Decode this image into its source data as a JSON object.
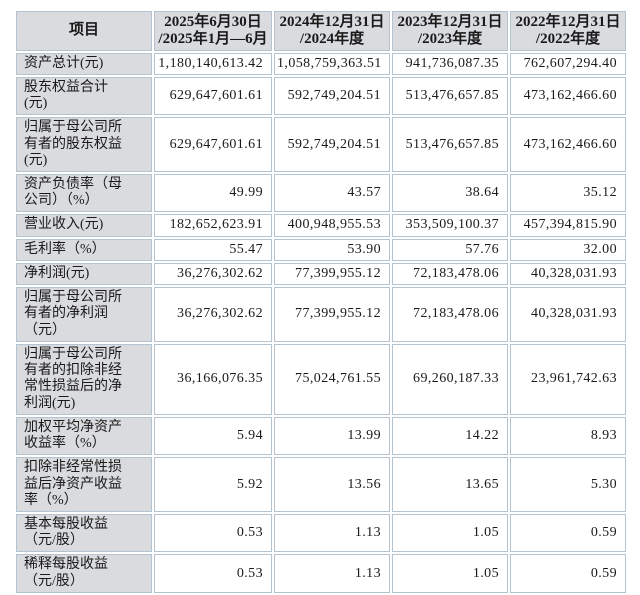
{
  "colors": {
    "page_background": "#ffffff",
    "header_fill": "#d9dbde",
    "label_column_fill": "#d9dbde",
    "cell_fill": "#ffffff",
    "border": "#b3c3d0",
    "text": "#1a1a1a"
  },
  "table": {
    "header": [
      "项目",
      "2025年6月30日\n/2025年1月—6月",
      "2024年12月31日\n/2024年度",
      "2023年12月31日\n/2023年度",
      "2022年12月31日\n/2022年度"
    ],
    "rows": [
      {
        "label": "资产总计(元)",
        "values": [
          "1,180,140,613.42",
          "1,058,759,363.51",
          "941,736,087.35",
          "762,607,294.40"
        ]
      },
      {
        "label": "股东权益合计\n(元)",
        "values": [
          "629,647,601.61",
          "592,749,204.51",
          "513,476,657.85",
          "473,162,466.60"
        ]
      },
      {
        "label": "归属于母公司所\n有者的股东权益\n(元)",
        "values": [
          "629,647,601.61",
          "592,749,204.51",
          "513,476,657.85",
          "473,162,466.60"
        ]
      },
      {
        "label": "资产负债率（母\n公司）（%）",
        "values": [
          "49.99",
          "43.57",
          "38.64",
          "35.12"
        ]
      },
      {
        "label": "营业收入(元)",
        "values": [
          "182,652,623.91",
          "400,948,955.53",
          "353,509,100.37",
          "457,394,815.90"
        ]
      },
      {
        "label": "毛利率（%）",
        "values": [
          "55.47",
          "53.90",
          "57.76",
          "32.00"
        ]
      },
      {
        "label": "净利润(元)",
        "values": [
          "36,276,302.62",
          "77,399,955.12",
          "72,183,478.06",
          "40,328,031.93"
        ]
      },
      {
        "label": "归属于母公司所\n有者的净利润\n（元）",
        "values": [
          "36,276,302.62",
          "77,399,955.12",
          "72,183,478.06",
          "40,328,031.93"
        ]
      },
      {
        "label": "归属于母公司所\n有者的扣除非经\n常性损益后的净\n利润(元)",
        "values": [
          "36,166,076.35",
          "75,024,761.55",
          "69,260,187.33",
          "23,961,742.63"
        ]
      },
      {
        "label": "加权平均净资产\n收益率（%）",
        "values": [
          "5.94",
          "13.99",
          "14.22",
          "8.93"
        ]
      },
      {
        "label": "扣除非经常性损\n益后净资产收益\n率（%）",
        "values": [
          "5.92",
          "13.56",
          "13.65",
          "5.30"
        ]
      },
      {
        "label": "基本每股收益\n（元/股）",
        "values": [
          "0.53",
          "1.13",
          "1.05",
          "0.59"
        ]
      },
      {
        "label": "稀释每股收益\n（元/股）",
        "values": [
          "0.53",
          "1.13",
          "1.05",
          "0.59"
        ]
      }
    ]
  }
}
